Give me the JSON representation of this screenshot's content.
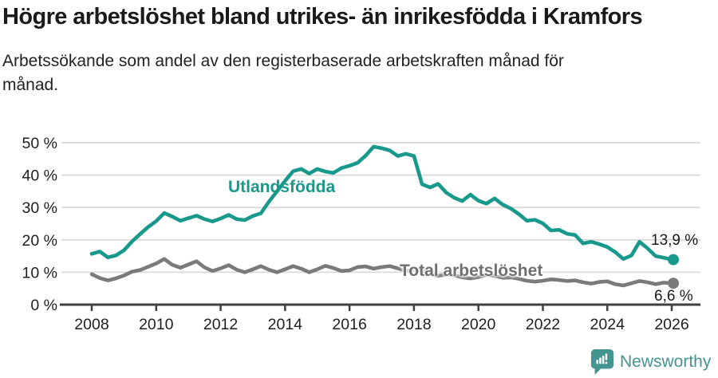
{
  "chart_data": {
    "type": "line",
    "title": "Högre arbetslöshet bland utrikes- än inrikesfödda i Kramfors",
    "subtitle": "Arbetssökande som andel av den registerbaserade arbetskraften månad för månad.",
    "grid": "horizontal",
    "legend": "inline-labels-on-chart",
    "xlim": [
      2008,
      2026.2
    ],
    "ylim": [
      0,
      52
    ],
    "xticks": [
      2008,
      2010,
      2012,
      2014,
      2016,
      2018,
      2020,
      2022,
      2024,
      2026
    ],
    "xtick_labels": [
      "2008",
      "2010",
      "2012",
      "2014",
      "2016",
      "2018",
      "2020",
      "2022",
      "2024",
      "2026"
    ],
    "yticks": [
      0,
      10,
      20,
      30,
      40,
      50
    ],
    "ytick_labels": [
      "0 %",
      "10 %",
      "20 %",
      "30 %",
      "40 %",
      "50 %"
    ],
    "x": [
      2008.0,
      2008.25,
      2008.5,
      2008.75,
      2009.0,
      2009.25,
      2009.5,
      2009.75,
      2010.0,
      2010.25,
      2010.5,
      2010.75,
      2011.0,
      2011.25,
      2011.5,
      2011.75,
      2012.0,
      2012.25,
      2012.5,
      2012.75,
      2013.0,
      2013.25,
      2013.5,
      2013.75,
      2014.0,
      2014.25,
      2014.5,
      2014.75,
      2015.0,
      2015.25,
      2015.5,
      2015.75,
      2016.0,
      2016.25,
      2016.5,
      2016.75,
      2017.0,
      2017.25,
      2017.5,
      2017.75,
      2018.0,
      2018.25,
      2018.5,
      2018.75,
      2019.0,
      2019.25,
      2019.5,
      2019.75,
      2020.0,
      2020.25,
      2020.5,
      2020.75,
      2021.0,
      2021.25,
      2021.5,
      2021.75,
      2022.0,
      2022.25,
      2022.5,
      2022.75,
      2023.0,
      2023.25,
      2023.5,
      2023.75,
      2024.0,
      2024.25,
      2024.5,
      2024.75,
      2025.0,
      2025.25,
      2025.5,
      2025.75,
      2026.0
    ],
    "series": [
      {
        "name": "Utlandsfödda",
        "color": "#18998b",
        "end_label": "13,9 %",
        "end_value": 13.9,
        "values": [
          15.7,
          16.4,
          14.6,
          15.2,
          16.8,
          19.5,
          21.8,
          24.0,
          25.8,
          28.3,
          27.2,
          25.9,
          26.7,
          27.5,
          26.4,
          25.7,
          26.6,
          27.7,
          26.4,
          26.1,
          27.4,
          28.2,
          31.8,
          35.0,
          38.2,
          41.2,
          41.9,
          40.5,
          41.9,
          41.1,
          40.7,
          42.2,
          42.9,
          43.8,
          46.0,
          48.8,
          48.3,
          47.6,
          45.9,
          46.6,
          45.9,
          37.2,
          36.2,
          37.3,
          34.6,
          33.0,
          32.0,
          34.0,
          32.1,
          31.2,
          32.8,
          30.9,
          29.7,
          28.0,
          25.9,
          26.2,
          25.1,
          22.9,
          23.1,
          21.9,
          21.5,
          18.9,
          19.4,
          18.7,
          17.8,
          16.2,
          14.1,
          15.2,
          19.4,
          17.4,
          15.0,
          14.5,
          13.9
        ]
      },
      {
        "name": "Total arbetslöshet",
        "color": "#7a7a7a",
        "end_label": "6,6 %",
        "end_value": 6.6,
        "values": [
          9.4,
          8.2,
          7.5,
          8.1,
          9.0,
          10.2,
          10.7,
          11.7,
          12.7,
          14.1,
          12.3,
          11.4,
          12.4,
          13.4,
          11.5,
          10.4,
          11.2,
          12.2,
          10.8,
          10.0,
          10.9,
          11.9,
          10.8,
          10.0,
          10.9,
          11.9,
          11.1,
          10.0,
          10.9,
          12.0,
          11.3,
          10.4,
          10.6,
          11.6,
          11.8,
          11.1,
          11.6,
          11.9,
          11.2,
          10.4,
          10.8,
          10.6,
          9.6,
          8.9,
          9.3,
          9.1,
          8.4,
          8.1,
          8.5,
          9.2,
          8.9,
          8.3,
          8.4,
          8.0,
          7.4,
          7.1,
          7.4,
          7.8,
          7.6,
          7.3,
          7.5,
          6.9,
          6.5,
          7.0,
          7.2,
          6.3,
          5.9,
          6.6,
          7.3,
          6.9,
          6.3,
          6.8,
          6.6
        ]
      }
    ],
    "colors": {
      "axis": "#404040",
      "gridline": "#dadada",
      "tick_text": "#1f1f1f"
    }
  },
  "footer": {
    "brand": "Newsworthy",
    "brand_color": "#44948f"
  }
}
